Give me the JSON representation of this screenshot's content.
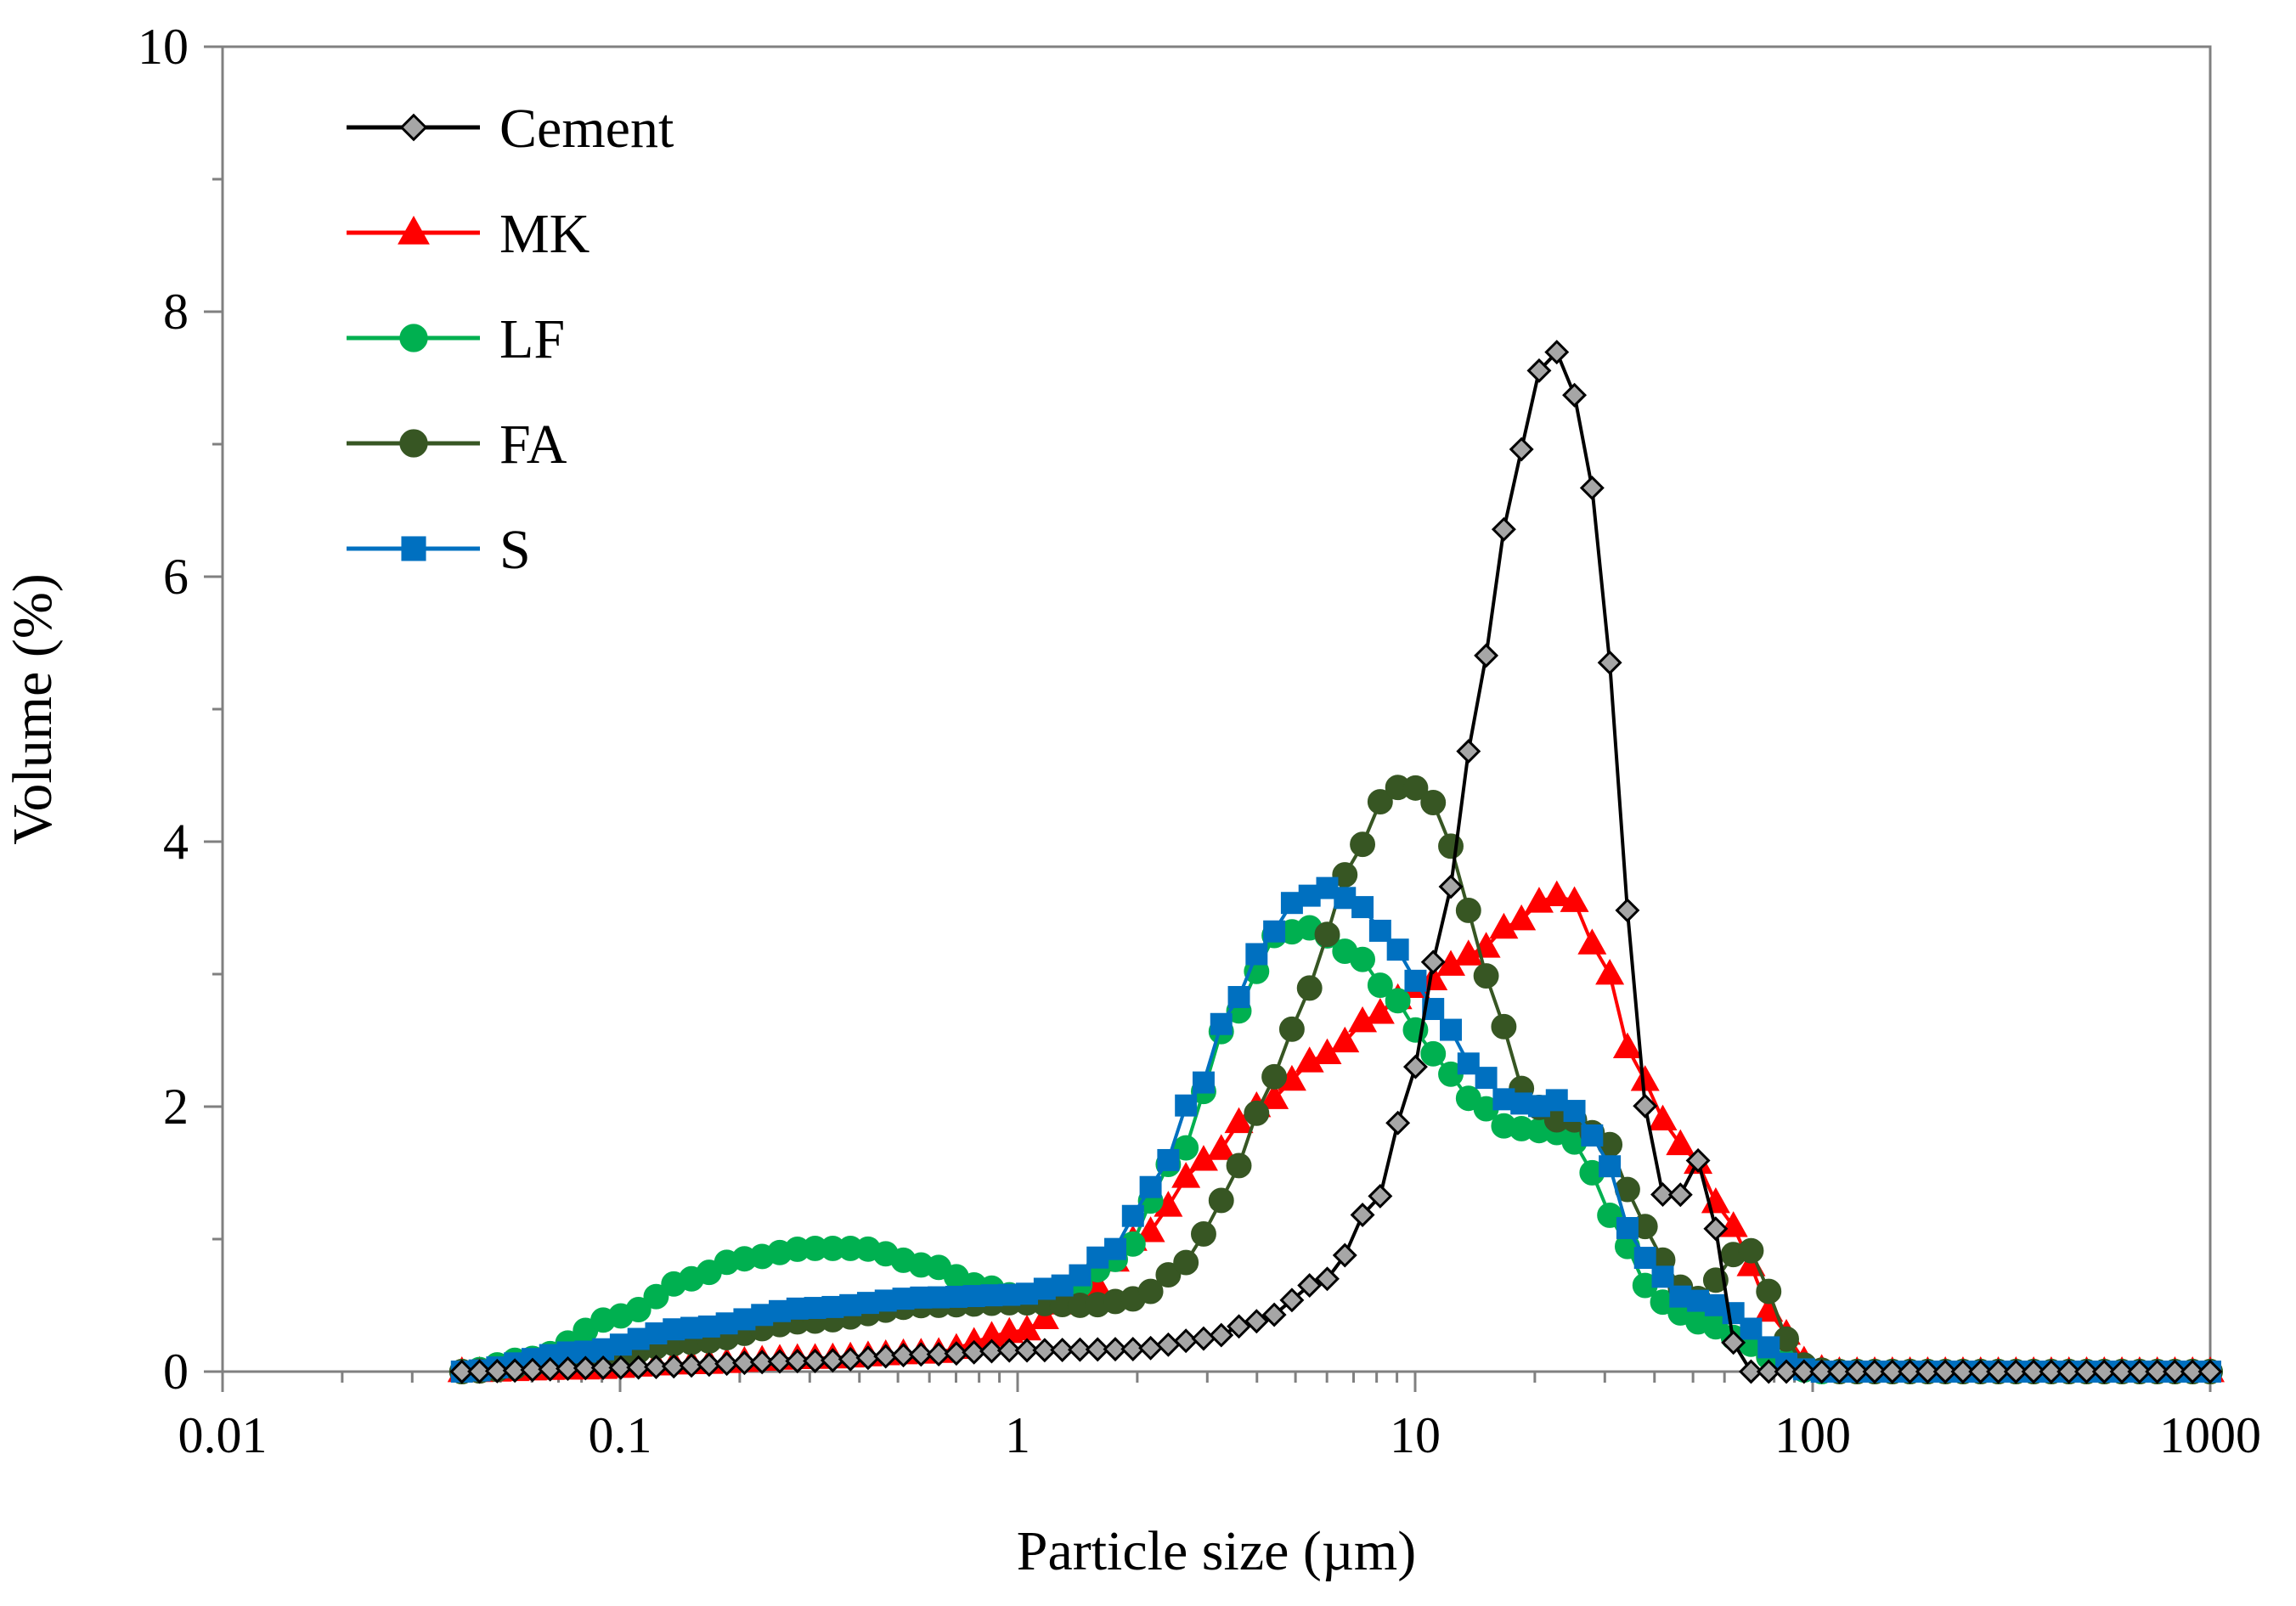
{
  "chart_data": {
    "type": "line",
    "title": "",
    "xlabel": "Particle size (µm)",
    "ylabel": "Volume (%)",
    "xscale": "log",
    "xlim": [
      0.01,
      1000
    ],
    "ylim": [
      0,
      10
    ],
    "xticks": [
      {
        "value": 0.01,
        "label": "0.01"
      },
      {
        "value": 0.1,
        "label": "0.1"
      },
      {
        "value": 1,
        "label": "1"
      },
      {
        "value": 10,
        "label": "10"
      },
      {
        "value": 100,
        "label": "100"
      },
      {
        "value": 1000,
        "label": "1000"
      }
    ],
    "yticks": [
      {
        "value": 0,
        "label": "0"
      },
      {
        "value": 2,
        "label": "2"
      },
      {
        "value": 4,
        "label": "4"
      },
      {
        "value": 6,
        "label": "6"
      },
      {
        "value": 8,
        "label": "8"
      },
      {
        "value": 10,
        "label": "10"
      }
    ],
    "grid": false,
    "legend_position": "top-left",
    "sampling": {
      "start": 0.04,
      "end": 1000,
      "points_per_decade": 22.5
    },
    "series": [
      {
        "name": "Cement",
        "color": "#000000",
        "marker": "diamond",
        "marker_fill": "#a6a6a6",
        "marker_stroke": "#000000",
        "anchors": [
          [
            0.04,
            0
          ],
          [
            0.1,
            0.03
          ],
          [
            0.3,
            0.08
          ],
          [
            0.6,
            0.13
          ],
          [
            1,
            0.16
          ],
          [
            2,
            0.17
          ],
          [
            3,
            0.25
          ],
          [
            4,
            0.38
          ],
          [
            6,
            0.7
          ],
          [
            8,
            1.3
          ],
          [
            10,
            2.3
          ],
          [
            12,
            3.6
          ],
          [
            15,
            5.4
          ],
          [
            18,
            6.9
          ],
          [
            21,
            7.6
          ],
          [
            23,
            7.7
          ],
          [
            26,
            7.3
          ],
          [
            29,
            6.4
          ],
          [
            32,
            4.9
          ],
          [
            35,
            3.2
          ],
          [
            38,
            2.0
          ],
          [
            41,
            1.4
          ],
          [
            44,
            1.15
          ],
          [
            47,
            1.35
          ],
          [
            52,
            1.6
          ],
          [
            56,
            1.2
          ],
          [
            60,
            0.5
          ],
          [
            66,
            0
          ],
          [
            1000,
            0
          ]
        ]
      },
      {
        "name": "MK",
        "color": "#ff0000",
        "marker": "triangle",
        "marker_fill": "#ff0000",
        "marker_stroke": "#ff0000",
        "anchors": [
          [
            0.04,
            0
          ],
          [
            0.08,
            0.02
          ],
          [
            0.15,
            0.06
          ],
          [
            0.3,
            0.1
          ],
          [
            0.6,
            0.14
          ],
          [
            1,
            0.3
          ],
          [
            1.5,
            0.6
          ],
          [
            2,
            1.0
          ],
          [
            3,
            1.6
          ],
          [
            4,
            2.0
          ],
          [
            6,
            2.4
          ],
          [
            8,
            2.7
          ],
          [
            10,
            2.9
          ],
          [
            14,
            3.15
          ],
          [
            18,
            3.4
          ],
          [
            22,
            3.6
          ],
          [
            25,
            3.55
          ],
          [
            30,
            3.05
          ],
          [
            36,
            2.3
          ],
          [
            42,
            1.9
          ],
          [
            50,
            1.6
          ],
          [
            60,
            1.2
          ],
          [
            70,
            0.8
          ],
          [
            80,
            0.4
          ],
          [
            95,
            0.08
          ],
          [
            110,
            0
          ],
          [
            1000,
            0
          ]
        ]
      },
      {
        "name": "LF",
        "color": "#00b050",
        "marker": "circle",
        "marker_fill": "#00b050",
        "marker_stroke": "#00b050",
        "anchors": [
          [
            0.04,
            0
          ],
          [
            0.06,
            0.1
          ],
          [
            0.1,
            0.42
          ],
          [
            0.15,
            0.7
          ],
          [
            0.2,
            0.85
          ],
          [
            0.3,
            0.93
          ],
          [
            0.4,
            0.93
          ],
          [
            0.6,
            0.8
          ],
          [
            0.8,
            0.65
          ],
          [
            1,
            0.57
          ],
          [
            1.3,
            0.6
          ],
          [
            1.8,
            0.85
          ],
          [
            2.5,
            1.6
          ],
          [
            3.5,
            2.7
          ],
          [
            4.5,
            3.3
          ],
          [
            5.5,
            3.35
          ],
          [
            7,
            3.15
          ],
          [
            9,
            2.8
          ],
          [
            11,
            2.4
          ],
          [
            14,
            2.05
          ],
          [
            17,
            1.85
          ],
          [
            20,
            1.82
          ],
          [
            24,
            1.8
          ],
          [
            28,
            1.5
          ],
          [
            33,
            1.0
          ],
          [
            38,
            0.65
          ],
          [
            45,
            0.45
          ],
          [
            55,
            0.35
          ],
          [
            65,
            0.25
          ],
          [
            80,
            0.1
          ],
          [
            100,
            0
          ],
          [
            1000,
            0
          ]
        ]
      },
      {
        "name": "FA",
        "color": "#375623",
        "marker": "circle",
        "marker_fill": "#375623",
        "marker_stroke": "#375623",
        "anchors": [
          [
            0.04,
            0
          ],
          [
            0.08,
            0.08
          ],
          [
            0.15,
            0.22
          ],
          [
            0.3,
            0.38
          ],
          [
            0.6,
            0.5
          ],
          [
            1,
            0.52
          ],
          [
            1.5,
            0.5
          ],
          [
            2,
            0.55
          ],
          [
            2.5,
            0.75
          ],
          [
            3,
            1.05
          ],
          [
            3.5,
            1.5
          ],
          [
            4,
            1.95
          ],
          [
            5,
            2.6
          ],
          [
            6,
            3.3
          ],
          [
            7,
            3.9
          ],
          [
            8.5,
            4.35
          ],
          [
            9.5,
            4.45
          ],
          [
            11,
            4.3
          ],
          [
            12.5,
            3.95
          ],
          [
            14,
            3.4
          ],
          [
            16,
            2.7
          ],
          [
            19,
            2.1
          ],
          [
            22,
            1.9
          ],
          [
            25,
            1.9
          ],
          [
            30,
            1.75
          ],
          [
            35,
            1.35
          ],
          [
            40,
            0.95
          ],
          [
            45,
            0.65
          ],
          [
            52,
            0.55
          ],
          [
            58,
            0.7
          ],
          [
            66,
            0.95
          ],
          [
            72,
            0.9
          ],
          [
            78,
            0.6
          ],
          [
            85,
            0.25
          ],
          [
            95,
            0.05
          ],
          [
            110,
            0
          ],
          [
            1000,
            0
          ]
        ]
      },
      {
        "name": "S",
        "color": "#0070c0",
        "marker": "square",
        "marker_fill": "#0070c0",
        "marker_stroke": "#0070c0",
        "anchors": [
          [
            0.04,
            0
          ],
          [
            0.08,
            0.15
          ],
          [
            0.15,
            0.33
          ],
          [
            0.3,
            0.48
          ],
          [
            0.6,
            0.56
          ],
          [
            1,
            0.58
          ],
          [
            1.3,
            0.65
          ],
          [
            1.7,
            0.9
          ],
          [
            2.2,
            1.4
          ],
          [
            2.8,
            2.1
          ],
          [
            3.5,
            2.8
          ],
          [
            4.3,
            3.3
          ],
          [
            5,
            3.55
          ],
          [
            6,
            3.65
          ],
          [
            7,
            3.55
          ],
          [
            8.5,
            3.3
          ],
          [
            10,
            2.95
          ],
          [
            12,
            2.6
          ],
          [
            14,
            2.3
          ],
          [
            17,
            2.05
          ],
          [
            20,
            2.0
          ],
          [
            23,
            2.05
          ],
          [
            26,
            1.95
          ],
          [
            30,
            1.6
          ],
          [
            35,
            1.05
          ],
          [
            40,
            0.75
          ],
          [
            48,
            0.55
          ],
          [
            58,
            0.5
          ],
          [
            66,
            0.42
          ],
          [
            75,
            0.2
          ],
          [
            88,
            0.05
          ],
          [
            100,
            0
          ],
          [
            1000,
            0
          ]
        ]
      }
    ]
  }
}
